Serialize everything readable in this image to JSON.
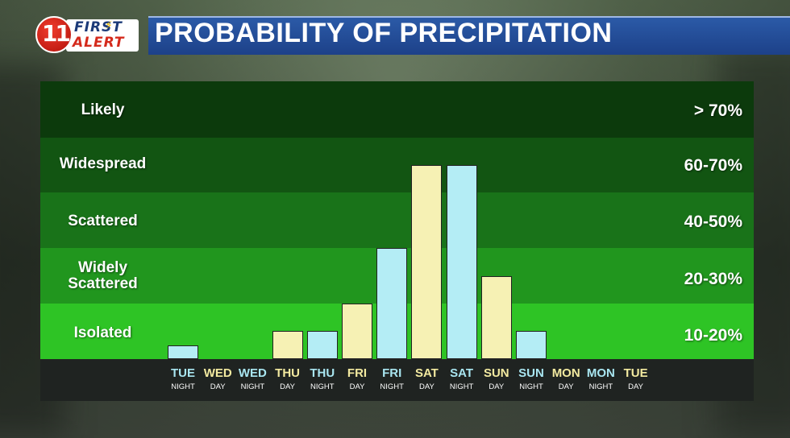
{
  "header": {
    "logo_number": "11",
    "logo_line1": "FIRST",
    "logo_line2": "ALERT",
    "title": "PROBABILITY OF PRECIPITATION"
  },
  "colors": {
    "night_bar": "#b4edf5",
    "day_bar": "#f6f1b4",
    "night_label": "#a9e6f1",
    "day_label": "#f3eaa0",
    "band_likely": "#0c3a0c",
    "band_widespread": "#125512",
    "band_scattered": "#197319",
    "band_widely_scattered": "#21961e",
    "band_isolated": "#2ec425"
  },
  "chart_data": {
    "type": "bar",
    "title": "PROBABILITY OF PRECIPITATION",
    "ylabel": "",
    "xlabel": "",
    "categories": [
      {
        "main": "TUE",
        "sub": "NIGHT",
        "period": "night"
      },
      {
        "main": "WED",
        "sub": "DAY",
        "period": "day"
      },
      {
        "main": "WED",
        "sub": "NIGHT",
        "period": "night"
      },
      {
        "main": "THU",
        "sub": "DAY",
        "period": "day"
      },
      {
        "main": "THU",
        "sub": "NIGHT",
        "period": "night"
      },
      {
        "main": "FRI",
        "sub": "DAY",
        "period": "day"
      },
      {
        "main": "FRI",
        "sub": "NIGHT",
        "period": "night"
      },
      {
        "main": "SAT",
        "sub": "DAY",
        "period": "day"
      },
      {
        "main": "SAT",
        "sub": "NIGHT",
        "period": "night"
      },
      {
        "main": "SUN",
        "sub": "DAY",
        "period": "day"
      },
      {
        "main": "SUN",
        "sub": "NIGHT",
        "period": "night"
      },
      {
        "main": "MON",
        "sub": "DAY",
        "period": "day"
      },
      {
        "main": "MON",
        "sub": "NIGHT",
        "period": "night"
      },
      {
        "main": "TUE",
        "sub": "DAY",
        "period": "day"
      }
    ],
    "values": [
      5,
      0,
      0,
      10,
      10,
      20,
      40,
      70,
      70,
      30,
      10,
      0,
      0,
      0
    ],
    "ylim": [
      0,
      100
    ],
    "bands": [
      {
        "name": "Likely",
        "range": "> 70%"
      },
      {
        "name": "Widespread",
        "range": "60-70%"
      },
      {
        "name": "Scattered",
        "range": "40-50%"
      },
      {
        "name": "Widely Scattered",
        "name_lines": [
          "Widely",
          "Scattered"
        ],
        "range": "20-30%"
      },
      {
        "name": "Isolated",
        "range": "10-20%"
      }
    ],
    "grid": false,
    "legend": "none"
  }
}
